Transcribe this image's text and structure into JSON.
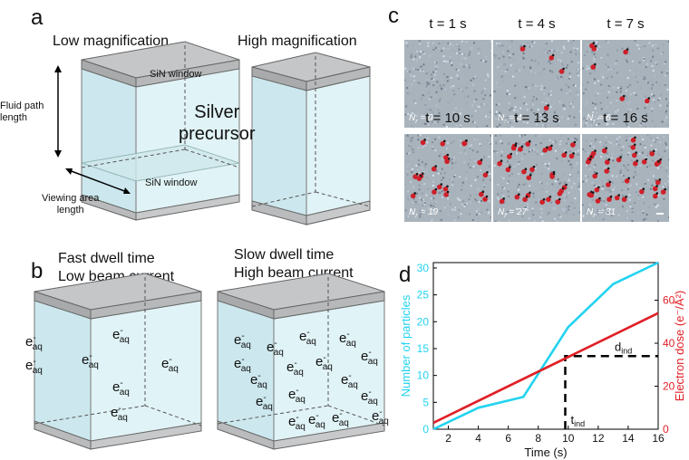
{
  "panel_a": {
    "letter": "a",
    "low_mag_label": "Low magnification",
    "high_mag_label": "High magnification",
    "sin_window_top": "SiN window",
    "sin_window_bottom": "SiN window",
    "silver_line1": "Silver",
    "silver_line2": "precursor",
    "fluid_path_line1": "Fluid path",
    "fluid_path_line2": "length",
    "viewing_line1": "Viewing area",
    "viewing_line2": "length"
  },
  "panel_b": {
    "letter": "b",
    "fast_line1": "Fast dwell time",
    "fast_line2": "Low beam current",
    "slow_line1": "Slow dwell time",
    "slow_line2": "High beam current",
    "electron_base": "e",
    "electron_sup": "-",
    "electron_sub": "aq"
  },
  "panel_c": {
    "letter": "c",
    "tiles": [
      {
        "time": "t = 1 s",
        "count_sub": "r",
        "count": "= 0",
        "dots": 0
      },
      {
        "time": "t = 4 s",
        "count_sub": "r",
        "count": "= 4",
        "dots": 4
      },
      {
        "time": "t = 7 s",
        "count_sub": "r",
        "count": "= 6",
        "dots": 6
      },
      {
        "time": "t = 10 s",
        "count_sub": "r",
        "count": "= 19",
        "dots": 19
      },
      {
        "time": "t = 13 s",
        "count_sub": "r",
        "count": "= 27",
        "dots": 27
      },
      {
        "time": "t = 16 s",
        "count_sub": "r",
        "count": "= 31",
        "dots": 31
      }
    ],
    "count_base": "N"
  },
  "panel_d": {
    "letter": "d",
    "colors": {
      "particles": "#22d3f0",
      "dose": "#e01f26",
      "dashed": "#000000"
    },
    "t_ind_base": "t",
    "t_ind_sub": "ind",
    "d_ind_base": "d",
    "d_ind_sub": "ind"
  },
  "chart_data": {
    "type": "line",
    "xlabel": "Time (s)",
    "ylabel_left": "Number of particles",
    "ylabel_right": "Electron dose (e⁻/Å²)",
    "xlim": [
      1,
      16
    ],
    "ylim_left": [
      0,
      31
    ],
    "ylim_right": [
      0,
      77.5
    ],
    "x_ticks": [
      "2",
      "4",
      "6",
      "8",
      "10",
      "12",
      "14",
      "16"
    ],
    "y_left_ticks": [
      "0",
      "5",
      "10",
      "15",
      "20",
      "25",
      "30"
    ],
    "y_right_ticks": [
      "0",
      "20",
      "40",
      "60"
    ],
    "series": [
      {
        "axis": "left",
        "x": [
          1,
          4,
          7,
          10,
          13,
          16
        ],
        "values": [
          0,
          4,
          6,
          19,
          27,
          31
        ]
      },
      {
        "axis": "right",
        "x": [
          1,
          16
        ],
        "values": [
          3,
          54
        ]
      }
    ],
    "induction": {
      "t": 9.8,
      "dose": 34
    }
  }
}
